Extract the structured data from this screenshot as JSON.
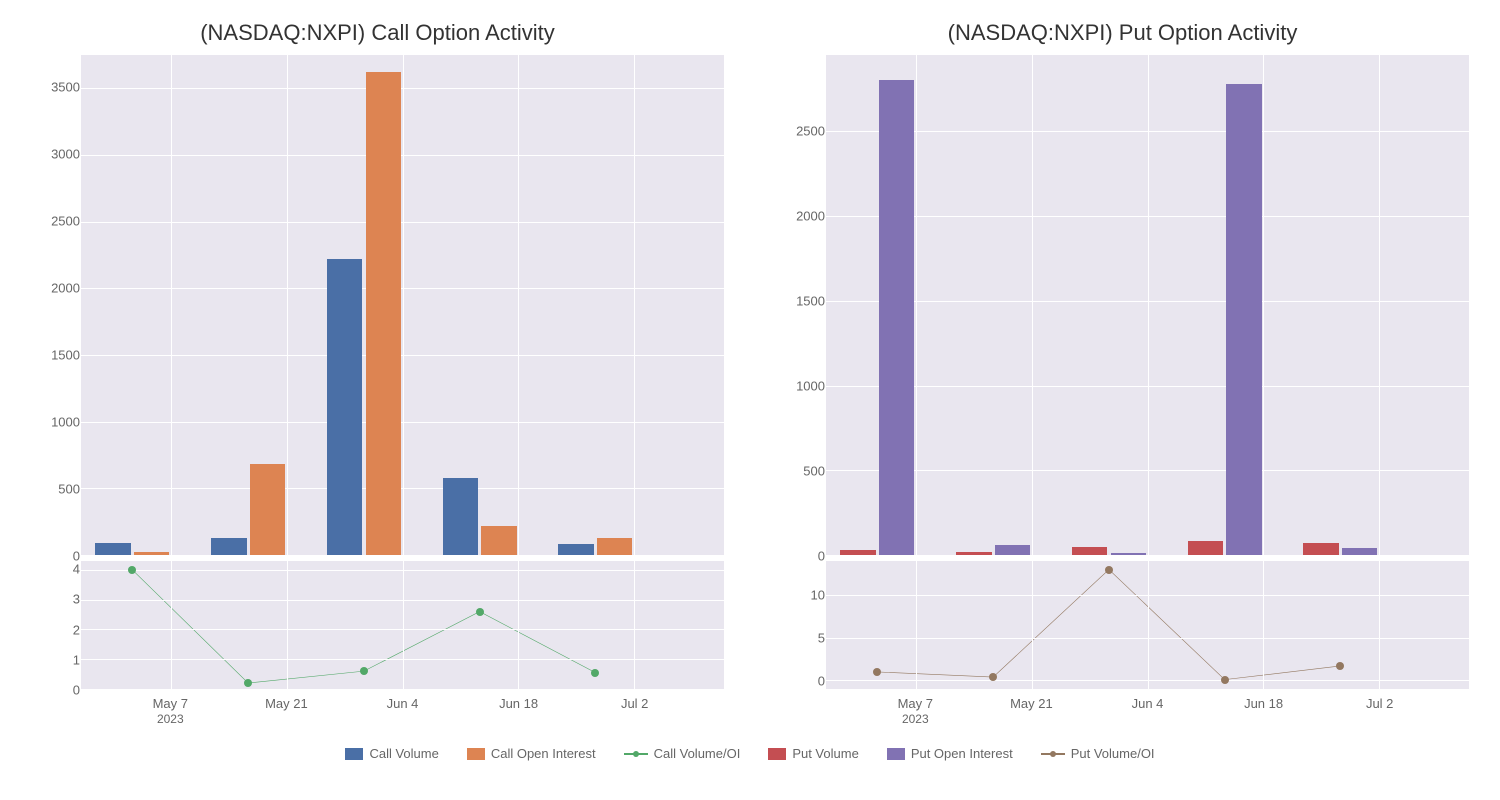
{
  "colors": {
    "plot_bg": "#e9e6ef",
    "grid": "#ffffff",
    "call_volume": "#4a6fa6",
    "call_oi": "#dd8452",
    "call_ratio": "#52a868",
    "put_volume": "#c44e52",
    "put_oi": "#8172b3",
    "put_ratio": "#937860",
    "text": "#666666",
    "title": "#333333"
  },
  "xaxis": {
    "ticks": [
      "May 7",
      "May 21",
      "Jun 4",
      "Jun 18",
      "Jul 2"
    ],
    "tick_positions_pct": [
      14,
      32,
      50,
      68,
      86
    ],
    "sub_label": "2023",
    "bar_centers_pct": [
      8,
      26,
      44,
      62,
      80,
      98
    ],
    "bar_width_pct": 5.5,
    "bar_gap_pct": 0.5
  },
  "call": {
    "title": "(NASDAQ:NXPI) Call Option Activity",
    "ylim": [
      0,
      3750
    ],
    "yticks": [
      0,
      500,
      1000,
      1500,
      2000,
      2500,
      3000,
      3500
    ],
    "volume": [
      90,
      130,
      2220,
      580,
      80,
      0
    ],
    "oi": [
      25,
      680,
      3620,
      220,
      130,
      0
    ],
    "ratio_ylim": [
      0,
      4.3
    ],
    "ratio_yticks": [
      0,
      1,
      2,
      3,
      4
    ],
    "ratio": [
      4.0,
      0.2,
      0.6,
      2.6,
      0.55
    ]
  },
  "put": {
    "title": "(NASDAQ:NXPI) Put Option Activity",
    "ylim": [
      0,
      2950
    ],
    "yticks": [
      0,
      500,
      1000,
      1500,
      2000,
      2500
    ],
    "volume": [
      30,
      20,
      45,
      85,
      70,
      0
    ],
    "oi": [
      2800,
      60,
      10,
      2780,
      40,
      0
    ],
    "ratio_ylim": [
      -1,
      14
    ],
    "ratio_yticks": [
      0,
      5,
      10
    ],
    "ratio": [
      1.0,
      0.4,
      13.0,
      0.1,
      1.7
    ]
  },
  "legend": {
    "call_volume": "Call Volume",
    "call_oi": "Call Open Interest",
    "call_ratio": "Call Volume/OI",
    "put_volume": "Put Volume",
    "put_oi": "Put Open Interest",
    "put_ratio": "Put Volume/OI"
  }
}
